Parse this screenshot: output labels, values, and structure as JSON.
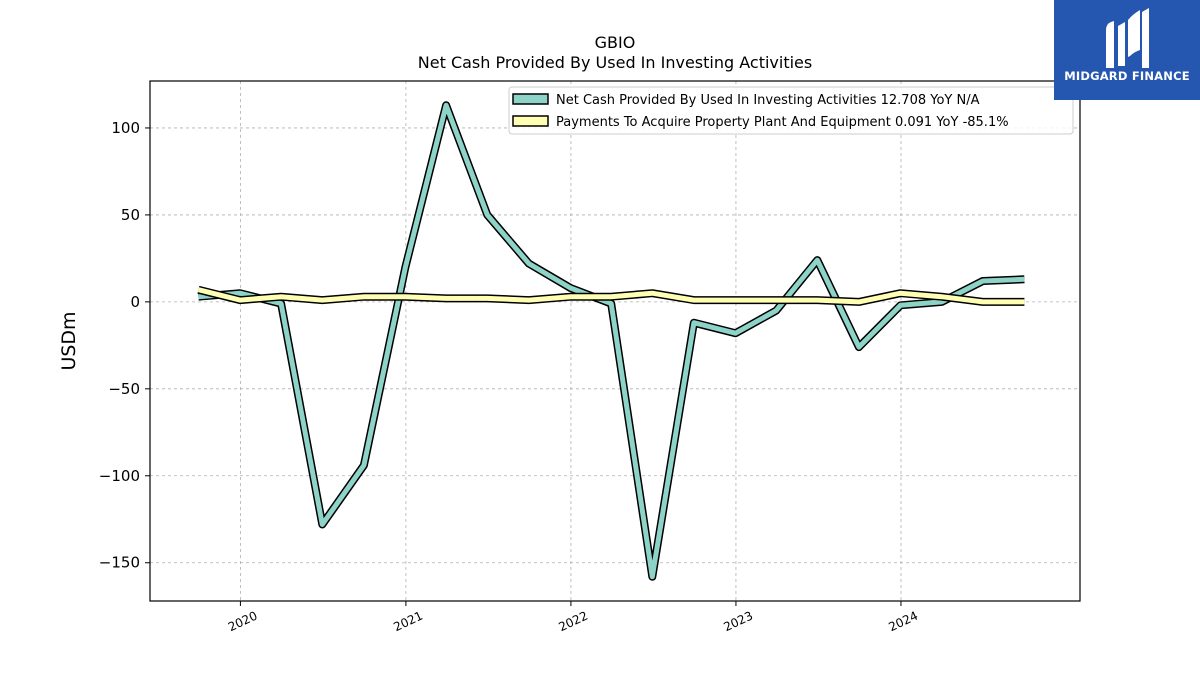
{
  "chart_data": {
    "type": "line",
    "title": "GBIO",
    "subtitle": "Net Cash Provided By Used In Investing Activities",
    "ylabel": "USDm",
    "xlabel": "",
    "ylim": [
      -172,
      127
    ],
    "yticks": [
      100,
      50,
      0,
      -50,
      -100,
      -150
    ],
    "ytick_labels": [
      "100",
      "50",
      "0",
      "−50",
      "−100",
      "−150"
    ],
    "xlim": [
      "2019-06-15",
      "2025-01-31"
    ],
    "xticks": [
      "2020-01-01",
      "2021-01-01",
      "2022-01-01",
      "2023-01-01",
      "2024-01-01"
    ],
    "xtick_labels": [
      "2020",
      "2021",
      "2022",
      "2023",
      "2024"
    ],
    "grid": true,
    "legend_position": "top-right",
    "x": [
      "2019-09-30",
      "2019-12-31",
      "2020-03-31",
      "2020-06-30",
      "2020-09-30",
      "2020-12-31",
      "2021-03-31",
      "2021-06-30",
      "2021-09-30",
      "2021-12-31",
      "2022-03-31",
      "2022-06-30",
      "2022-09-30",
      "2022-12-31",
      "2023-03-31",
      "2023-06-30",
      "2023-09-30",
      "2023-12-31",
      "2024-03-31",
      "2024-06-30",
      "2024-09-30"
    ],
    "series": [
      {
        "name": "Net Cash Provided By Used In Investing Activities",
        "legend_label": "Net Cash Provided By Used In Investing Activities  12.708 YoY N/A",
        "color": "#8dd3c7",
        "values": [
          3,
          5,
          -1,
          -128,
          -94,
          20,
          113,
          50,
          22,
          8,
          -1,
          -158,
          -12,
          -18,
          -5,
          24,
          -26,
          -2,
          0,
          12,
          13
        ]
      },
      {
        "name": "Payments To Acquire Property Plant And Equipment",
        "legend_label": "Payments To Acquire Property Plant And Equipment  0.091 YoY -85.1%",
        "color": "#ffffb3",
        "values": [
          7,
          1,
          3,
          1,
          3,
          3,
          2,
          2,
          1,
          3,
          3,
          5,
          1,
          1,
          1,
          1,
          0,
          5,
          3,
          0,
          0
        ]
      }
    ]
  },
  "logo": {
    "text": "MIDGARD FINANCE",
    "color": "#2556b0"
  }
}
